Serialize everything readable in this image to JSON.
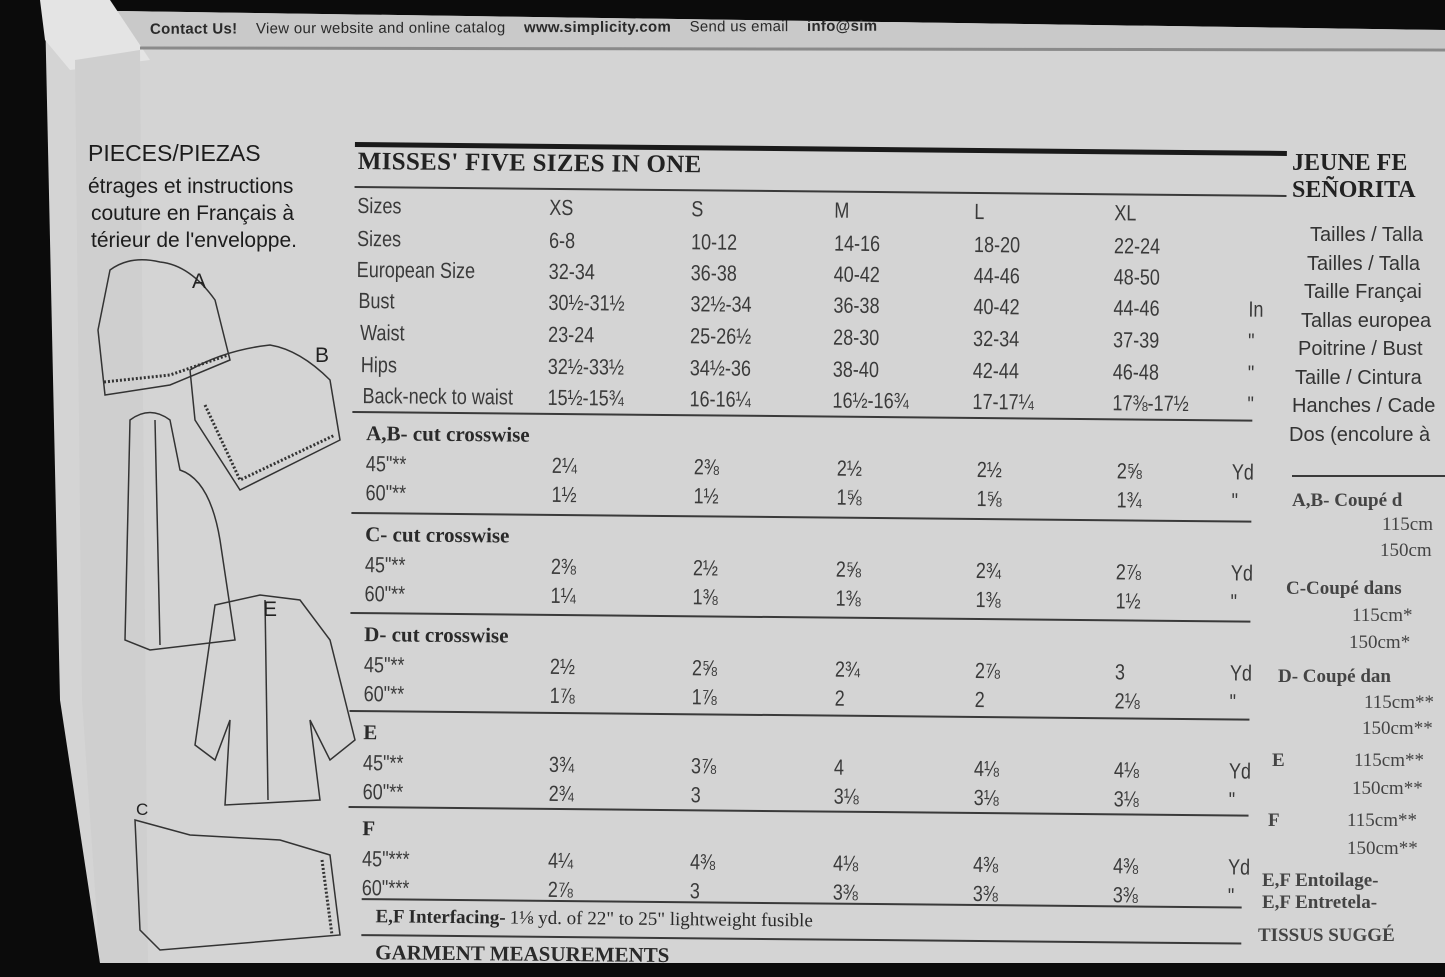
{
  "contact_strip": {
    "label": "Contact Us!",
    "text1": "View our website and online catalog",
    "url": "www.simplicity.com",
    "text2": "Send us email",
    "email": "info@sim"
  },
  "left_panel": {
    "title": "PIECES/PIEZAS",
    "lines": [
      "étrages et instructions",
      "couture en Français à",
      "térieur de l'enveloppe."
    ],
    "view_letters": [
      "A",
      "B",
      "E",
      "C"
    ]
  },
  "table": {
    "title": "MISSES' FIVE SIZES IN ONE",
    "measure_rows": [
      {
        "label": "Sizes",
        "values": [
          "XS",
          "S",
          "M",
          "L",
          "XL"
        ],
        "unit": ""
      },
      {
        "label": "Sizes",
        "values": [
          "6-8",
          "10-12",
          "14-16",
          "18-20",
          "22-24"
        ],
        "unit": ""
      },
      {
        "label": "European Size",
        "values": [
          "32-34",
          "36-38",
          "40-42",
          "44-46",
          "48-50"
        ],
        "unit": ""
      },
      {
        "label": "Bust",
        "values": [
          "30½-31½",
          "32½-34",
          "36-38",
          "40-42",
          "44-46"
        ],
        "unit": "In"
      },
      {
        "label": "Waist",
        "values": [
          "23-24",
          "25-26½",
          "28-30",
          "32-34",
          "37-39"
        ],
        "unit": "\""
      },
      {
        "label": "Hips",
        "values": [
          "32½-33½",
          "34½-36",
          "38-40",
          "42-44",
          "46-48"
        ],
        "unit": "\""
      },
      {
        "label": "Back-neck to waist",
        "values": [
          "15½-15¾",
          "16-16¼",
          "16½-16¾",
          "17-17¼",
          "17⅜-17½"
        ],
        "unit": "\""
      }
    ],
    "sections": [
      {
        "title": "A,B- cut crosswise",
        "rows": [
          {
            "label": "45\"**",
            "values": [
              "2¼",
              "2⅜",
              "2½",
              "2½",
              "2⅝"
            ],
            "unit": "Yd"
          },
          {
            "label": "60\"**",
            "values": [
              "1½",
              "1½",
              "1⅝",
              "1⅝",
              "1¾"
            ],
            "unit": "\""
          }
        ]
      },
      {
        "title": "C- cut crosswise",
        "rows": [
          {
            "label": "45\"**",
            "values": [
              "2⅜",
              "2½",
              "2⅝",
              "2¾",
              "2⅞"
            ],
            "unit": "Yd"
          },
          {
            "label": "60\"**",
            "values": [
              "1¼",
              "1⅜",
              "1⅜",
              "1⅜",
              "1½"
            ],
            "unit": "\""
          }
        ]
      },
      {
        "title": "D- cut crosswise",
        "rows": [
          {
            "label": "45\"**",
            "values": [
              "2½",
              "2⅝",
              "2¾",
              "2⅞",
              "3"
            ],
            "unit": "Yd"
          },
          {
            "label": "60\"**",
            "values": [
              "1⅞",
              "1⅞",
              "2",
              "2",
              "2⅛"
            ],
            "unit": "\""
          }
        ]
      },
      {
        "title": "E",
        "rows": [
          {
            "label": "45\"**",
            "values": [
              "3¾",
              "3⅞",
              "4",
              "4⅛",
              "4⅛"
            ],
            "unit": "Yd"
          },
          {
            "label": "60\"**",
            "values": [
              "2¾",
              "3",
              "3⅛",
              "3⅛",
              "3⅛"
            ],
            "unit": "\""
          }
        ]
      },
      {
        "title": "F",
        "rows": [
          {
            "label": "45\"***",
            "values": [
              "4¼",
              "4⅜",
              "4⅛",
              "4⅜",
              "4⅜"
            ],
            "unit": "Yd"
          },
          {
            "label": "60\"***",
            "values": [
              "2⅞",
              "3",
              "3⅜",
              "3⅜",
              "3⅜"
            ],
            "unit": "\""
          }
        ]
      }
    ],
    "interfacing_label": "E,F Interfacing-",
    "interfacing_text": "1⅛ yd. of 22\" to 25\" lightweight fusible",
    "garment_measurements": "GARMENT MEASUREMENTS"
  },
  "right_panel": {
    "title_lines": [
      "JEUNE FE",
      "SEÑORITA"
    ],
    "labels": [
      "Tailles / Talla",
      "Tailles / Talla",
      "Taille Françai",
      "Tallas europea",
      "Poitrine / Bust",
      "Taille / Cintura",
      "Hanches / Cade",
      "Dos (encolure à"
    ],
    "sections": [
      "A,B- Coupé d",
      "115cm",
      "150cm",
      "C-Coupé dans",
      "115cm*",
      "150cm*",
      "D- Coupé dan",
      "115cm**",
      "150cm**",
      "E",
      "115cm**",
      "150cm**",
      "F",
      "115cm**",
      "150cm**",
      "E,F Entoilage-",
      "E,F Entretela-",
      "TISSUS SUGGÉ"
    ]
  }
}
